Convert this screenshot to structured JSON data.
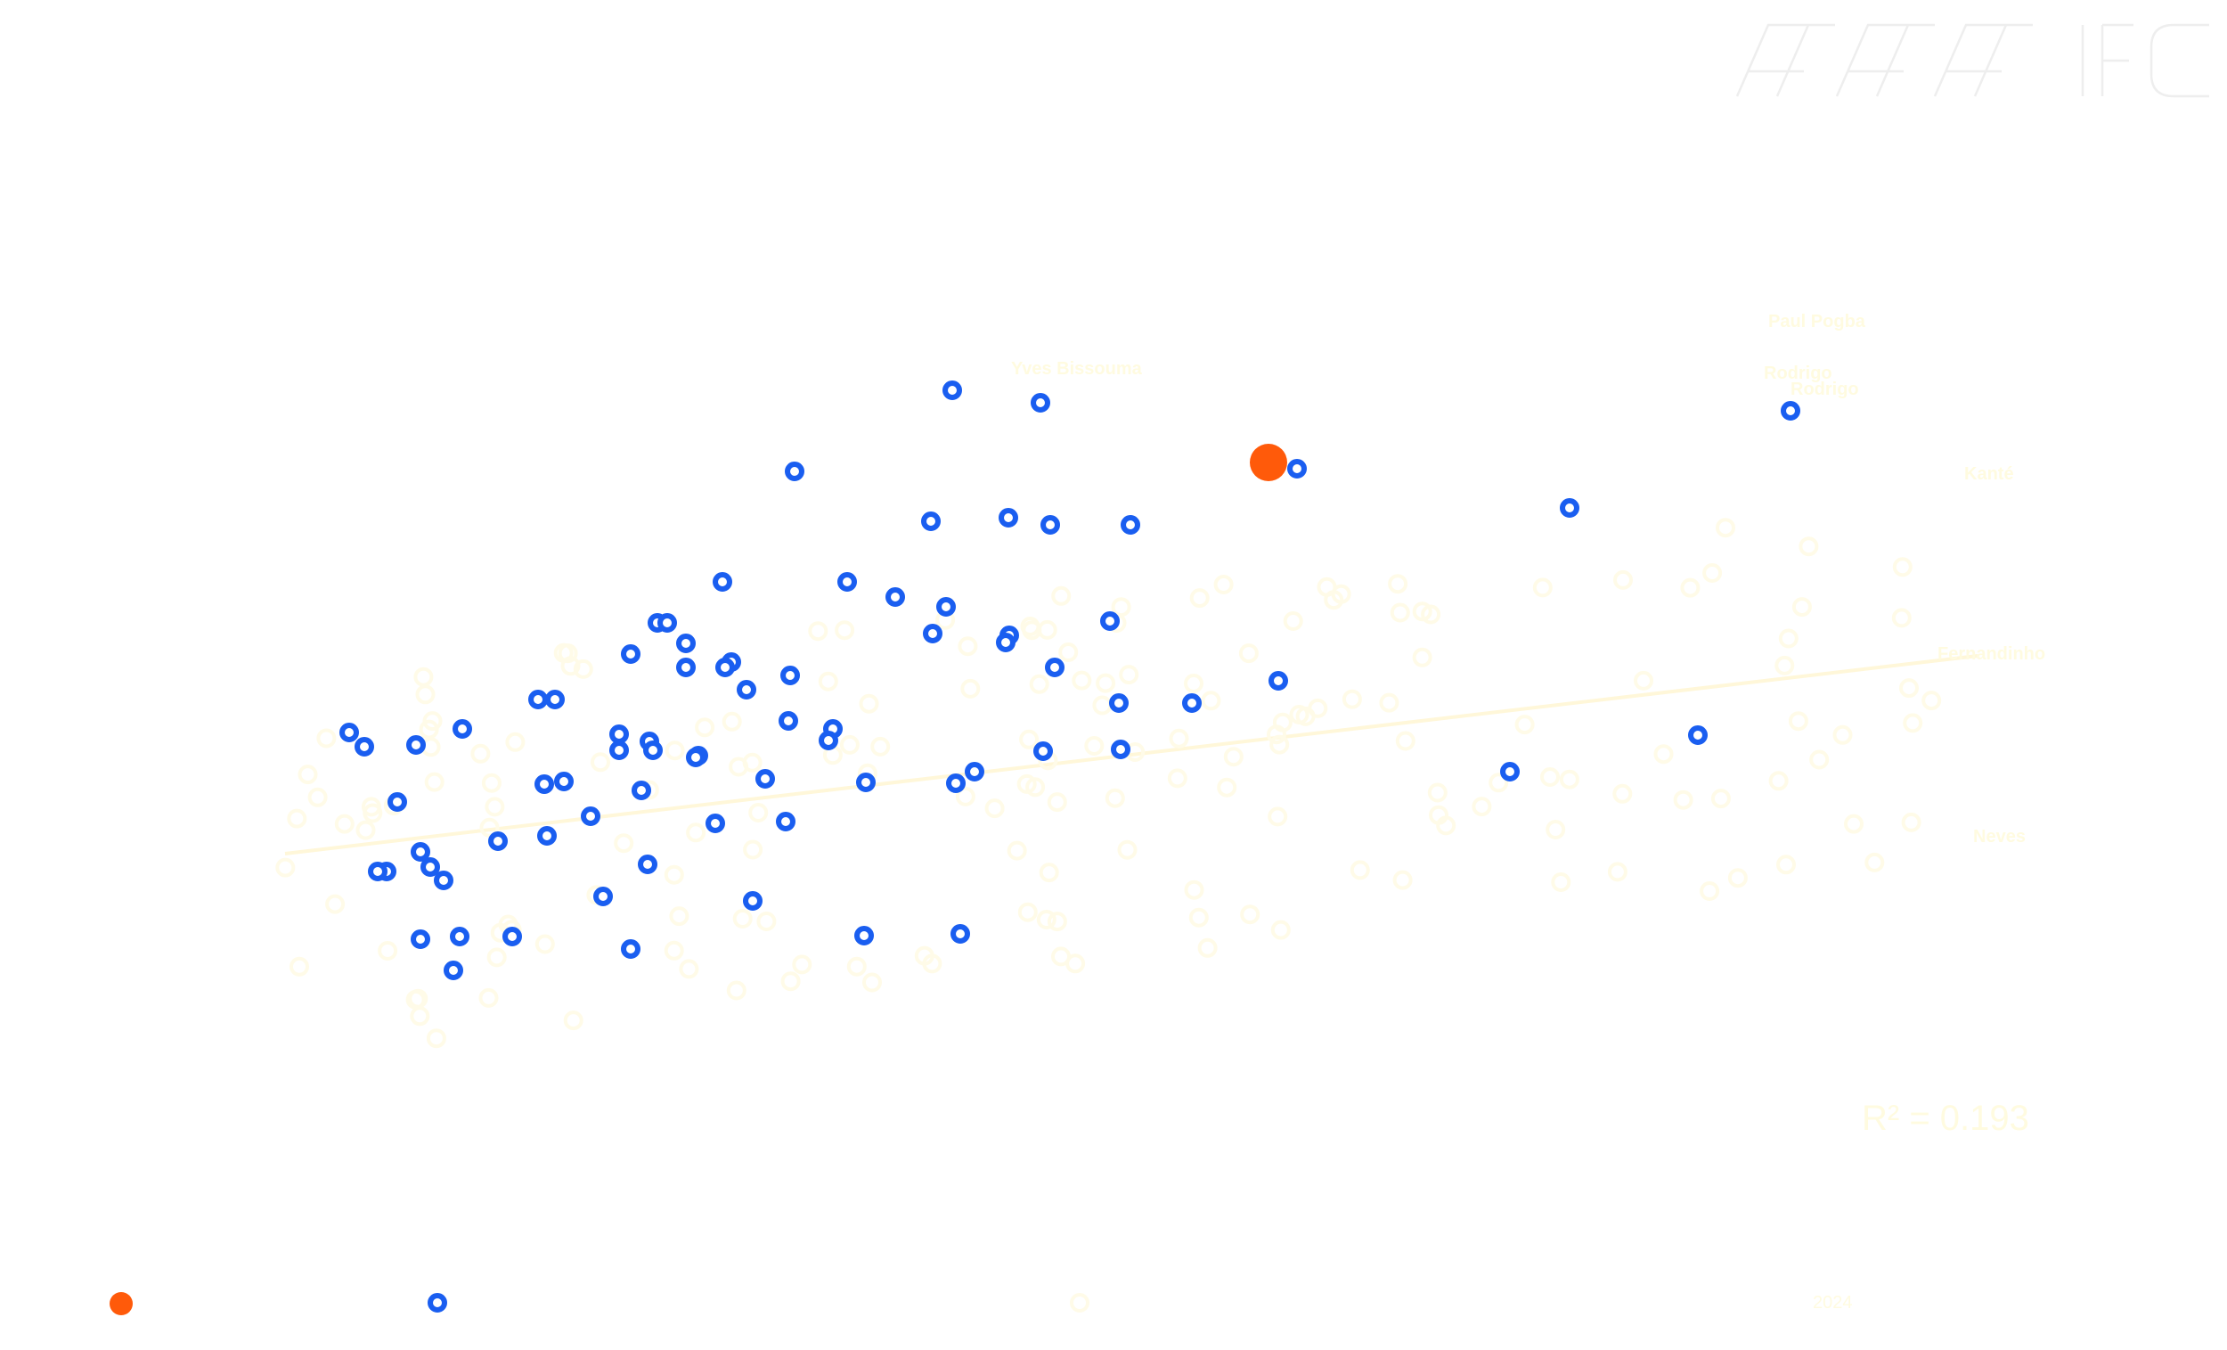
{
  "branding": {
    "logo_text": "FFFFC",
    "logo_color": "#eeeeee"
  },
  "chart_data": {
    "type": "scatter",
    "title": "",
    "xlabel": "",
    "ylabel": "",
    "colors": {
      "highlight": "#ff5a0a",
      "series": "#1a5ef0",
      "background_points": "#fffbe8",
      "trend": "#fff7d9",
      "faint_text": "#fffbe0"
    },
    "highlight_point": {
      "x": 1424,
      "y": 519
    },
    "series": [
      {
        "name": "",
        "points": [
          {
            "x": 1069,
            "y": 438
          },
          {
            "x": 1168,
            "y": 452
          },
          {
            "x": 2010,
            "y": 461
          },
          {
            "x": 1456,
            "y": 526
          },
          {
            "x": 892,
            "y": 529
          },
          {
            "x": 1762,
            "y": 570
          },
          {
            "x": 1045,
            "y": 585
          },
          {
            "x": 1132,
            "y": 581
          },
          {
            "x": 1179,
            "y": 589
          },
          {
            "x": 1269,
            "y": 589
          },
          {
            "x": 811,
            "y": 653
          },
          {
            "x": 951,
            "y": 653
          },
          {
            "x": 1005,
            "y": 670
          },
          {
            "x": 1062,
            "y": 681
          },
          {
            "x": 738,
            "y": 699
          },
          {
            "x": 749,
            "y": 699
          },
          {
            "x": 1246,
            "y": 697
          },
          {
            "x": 1047,
            "y": 711
          },
          {
            "x": 1133,
            "y": 713
          },
          {
            "x": 1129,
            "y": 721
          },
          {
            "x": 770,
            "y": 722
          },
          {
            "x": 708,
            "y": 734
          },
          {
            "x": 821,
            "y": 743
          },
          {
            "x": 770,
            "y": 749
          },
          {
            "x": 814,
            "y": 749
          },
          {
            "x": 1184,
            "y": 749
          },
          {
            "x": 887,
            "y": 758
          },
          {
            "x": 838,
            "y": 774
          },
          {
            "x": 1435,
            "y": 764
          },
          {
            "x": 604,
            "y": 785
          },
          {
            "x": 623,
            "y": 785
          },
          {
            "x": 1256,
            "y": 789
          },
          {
            "x": 1338,
            "y": 789
          },
          {
            "x": 885,
            "y": 809
          },
          {
            "x": 935,
            "y": 818
          },
          {
            "x": 392,
            "y": 822
          },
          {
            "x": 519,
            "y": 818
          },
          {
            "x": 695,
            "y": 824
          },
          {
            "x": 729,
            "y": 832
          },
          {
            "x": 409,
            "y": 838
          },
          {
            "x": 467,
            "y": 836
          },
          {
            "x": 930,
            "y": 831
          },
          {
            "x": 1906,
            "y": 825
          },
          {
            "x": 695,
            "y": 842
          },
          {
            "x": 733,
            "y": 842
          },
          {
            "x": 784,
            "y": 848
          },
          {
            "x": 781,
            "y": 850
          },
          {
            "x": 1171,
            "y": 843
          },
          {
            "x": 1258,
            "y": 841
          },
          {
            "x": 1695,
            "y": 866
          },
          {
            "x": 1094,
            "y": 866
          },
          {
            "x": 859,
            "y": 874
          },
          {
            "x": 972,
            "y": 878
          },
          {
            "x": 1073,
            "y": 879
          },
          {
            "x": 633,
            "y": 877
          },
          {
            "x": 611,
            "y": 880
          },
          {
            "x": 720,
            "y": 887
          },
          {
            "x": 446,
            "y": 900
          },
          {
            "x": 663,
            "y": 916
          },
          {
            "x": 803,
            "y": 924
          },
          {
            "x": 882,
            "y": 922
          },
          {
            "x": 614,
            "y": 938
          },
          {
            "x": 559,
            "y": 944
          },
          {
            "x": 472,
            "y": 956
          },
          {
            "x": 727,
            "y": 970
          },
          {
            "x": 483,
            "y": 973
          },
          {
            "x": 434,
            "y": 978
          },
          {
            "x": 424,
            "y": 978
          },
          {
            "x": 498,
            "y": 988
          },
          {
            "x": 677,
            "y": 1006
          },
          {
            "x": 845,
            "y": 1011
          },
          {
            "x": 1078,
            "y": 1048
          },
          {
            "x": 970,
            "y": 1050
          },
          {
            "x": 472,
            "y": 1054
          },
          {
            "x": 516,
            "y": 1051
          },
          {
            "x": 575,
            "y": 1051
          },
          {
            "x": 708,
            "y": 1065
          },
          {
            "x": 509,
            "y": 1089
          }
        ]
      }
    ],
    "faint_labels": [
      {
        "text": "Yves Bissouma",
        "x": 1135,
        "y": 420
      },
      {
        "text": "Paul Pogba",
        "x": 1985,
        "y": 367
      },
      {
        "text": "Rodrigo",
        "x": 1980,
        "y": 425
      },
      {
        "text": "Rodrigo",
        "x": 2010,
        "y": 443
      },
      {
        "text": "Kanté",
        "x": 2205,
        "y": 538
      },
      {
        "text": "Fernandinho",
        "x": 2175,
        "y": 740
      },
      {
        "text": "Neves",
        "x": 2215,
        "y": 945
      }
    ],
    "trendline": {
      "x1": 320,
      "y1": 958,
      "x2": 2220,
      "y2": 736
    },
    "r2_text": "R² = 0.193",
    "legend": [
      {
        "label": "",
        "marker": "highlight"
      },
      {
        "label": "",
        "marker": "series"
      },
      {
        "label": "",
        "marker": "background"
      },
      {
        "label": "2024",
        "marker": "text"
      }
    ]
  }
}
